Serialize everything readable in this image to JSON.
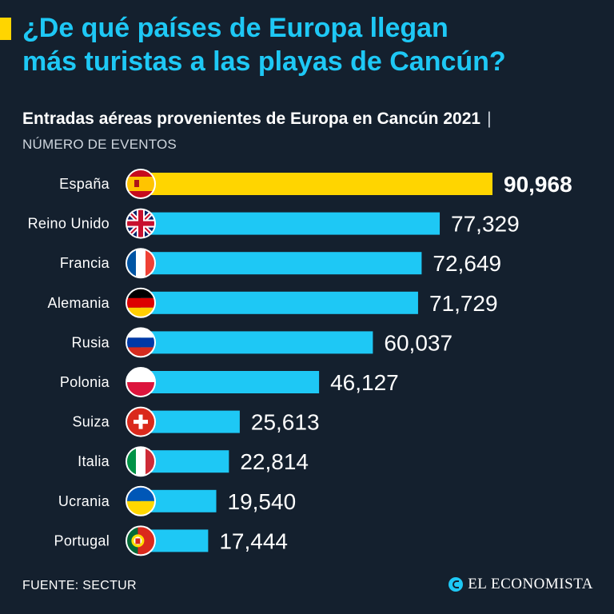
{
  "title": {
    "line1": "¿De qué países de Europa llegan",
    "line2": "más turistas a las playas de Cancún?"
  },
  "subtitle": "Entradas aéreas provenientes de Europa en Cancún 2021",
  "subtitle_separator": "|",
  "units": "NÚMERO DE EVENTOS",
  "footer": {
    "source": "FUENTE: SECTUR",
    "brand": "EL ECONOMISTA"
  },
  "colors": {
    "background": "#14202e",
    "highlight_bar": "#ffd500",
    "bar": "#1ec8f5",
    "title": "#1ec8f5"
  },
  "chart_data": {
    "type": "bar",
    "orientation": "horizontal",
    "title": "Entradas aéreas provenientes de Europa en Cancún 2021",
    "xlabel": "NÚMERO DE EVENTOS",
    "ylabel": "",
    "xlim": [
      0,
      90968
    ],
    "grid": false,
    "categories": [
      "España",
      "Reino Unido",
      "Francia",
      "Alemania",
      "Rusia",
      "Polonia",
      "Suiza",
      "Italia",
      "Ucrania",
      "Portugal"
    ],
    "values": [
      90968,
      77329,
      72649,
      71729,
      60037,
      46127,
      25613,
      22814,
      19540,
      17444
    ],
    "value_labels": [
      "90,968",
      "77,329",
      "72,649",
      "71,729",
      "60,037",
      "46,127",
      "25,613",
      "22,814",
      "19,540",
      "17,444"
    ],
    "highlight": "España",
    "flag_icons": [
      "spain-flag-icon",
      "uk-flag-icon",
      "france-flag-icon",
      "germany-flag-icon",
      "russia-flag-icon",
      "poland-flag-icon",
      "switzerland-flag-icon",
      "italy-flag-icon",
      "ukraine-flag-icon",
      "portugal-flag-icon"
    ]
  }
}
